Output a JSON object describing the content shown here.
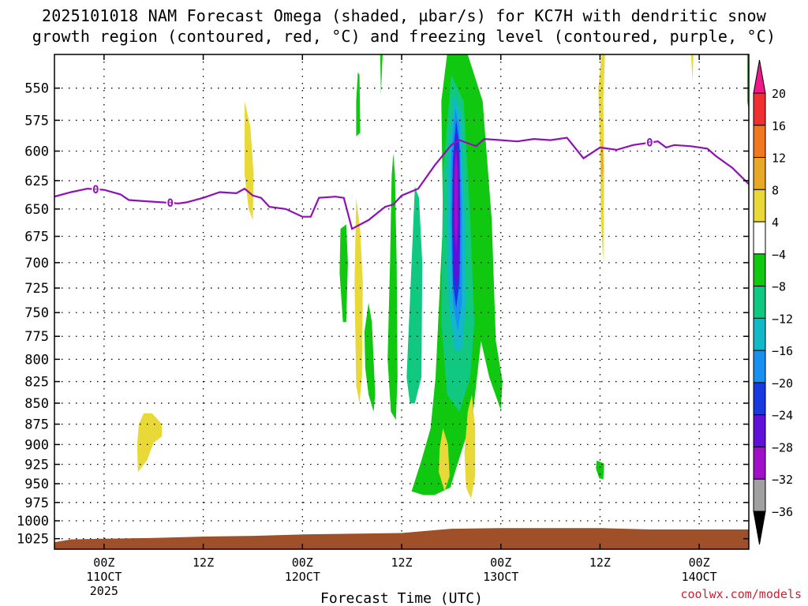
{
  "title": {
    "line1": "2025101018 NAM Forecast Omega (shaded, µbar/s) for KC7H with dendritic snow",
    "line2": "growth region (contoured, red, °C) and freezing level (contoured, purple, °C)"
  },
  "credit": "coolwx.com/models",
  "chart_data": {
    "type": "heatmap",
    "xlabel": "Forecast Time (UTC)",
    "x_ticks": [
      {
        "hours": 0,
        "label1": "00Z",
        "label2": "11OCT",
        "label3": "2025"
      },
      {
        "hours": 12,
        "label1": "12Z",
        "label2": "",
        "label3": ""
      },
      {
        "hours": 24,
        "label1": "00Z",
        "label2": "12OCT",
        "label3": ""
      },
      {
        "hours": 36,
        "label1": "12Z",
        "label2": "",
        "label3": ""
      },
      {
        "hours": 48,
        "label1": "00Z",
        "label2": "13OCT",
        "label3": ""
      },
      {
        "hours": 60,
        "label1": "12Z",
        "label2": "",
        "label3": ""
      },
      {
        "hours": 72,
        "label1": "00Z",
        "label2": "14OCT",
        "label3": ""
      }
    ],
    "x_range_hours": [
      -6,
      78
    ],
    "y_axis": {
      "scale": "log",
      "range": [
        1040,
        525
      ],
      "reversed": true
    },
    "y_ticks": [
      550,
      575,
      600,
      625,
      650,
      675,
      700,
      725,
      750,
      775,
      800,
      825,
      850,
      875,
      900,
      925,
      950,
      975,
      1000,
      1025
    ],
    "grid": "dotted",
    "colorbar": {
      "levels": [
        "20",
        "16",
        "12",
        "8",
        "4",
        "−4",
        "−8",
        "−12",
        "−16",
        "−20",
        "−24",
        "−28",
        "−32",
        "−36"
      ],
      "colors": [
        "#f01888",
        "#f03030",
        "#f07820",
        "#e8a828",
        "#e8d838",
        "#ffffff",
        "#10c810",
        "#10c880",
        "#10b8c8",
        "#1890f0",
        "#1838e0",
        "#6010d8",
        "#a010c8",
        "#a0a0a0",
        "#000000"
      ]
    },
    "freezing_level": {
      "color": "#9010b8",
      "label": "0",
      "label_hours": [
        -1,
        8,
        66
      ],
      "points": [
        [
          -6,
          639
        ],
        [
          -4,
          635
        ],
        [
          -2,
          632
        ],
        [
          0,
          633
        ],
        [
          2,
          637
        ],
        [
          3,
          642
        ],
        [
          5,
          643
        ],
        [
          7,
          644
        ],
        [
          9,
          645
        ],
        [
          10,
          644
        ],
        [
          12,
          640
        ],
        [
          14,
          635
        ],
        [
          16,
          636
        ],
        [
          17,
          632
        ],
        [
          18,
          638
        ],
        [
          19,
          640
        ],
        [
          20,
          648
        ],
        [
          22,
          650
        ],
        [
          24,
          657
        ],
        [
          25,
          657
        ],
        [
          26,
          640
        ],
        [
          28,
          639
        ],
        [
          29,
          640
        ],
        [
          30,
          668
        ],
        [
          32,
          660
        ],
        [
          34,
          648
        ],
        [
          35,
          646
        ],
        [
          36,
          638
        ],
        [
          38,
          632
        ],
        [
          40,
          612
        ],
        [
          42,
          595
        ],
        [
          43,
          591
        ],
        [
          45,
          596
        ],
        [
          46,
          590
        ],
        [
          48,
          591
        ],
        [
          50,
          592
        ],
        [
          52,
          590
        ],
        [
          54,
          591
        ],
        [
          56,
          589
        ],
        [
          58,
          606
        ],
        [
          60,
          597
        ],
        [
          62,
          599
        ],
        [
          64,
          595
        ],
        [
          67,
          592
        ],
        [
          68,
          597
        ],
        [
          69,
          595
        ],
        [
          71,
          596
        ],
        [
          73,
          598
        ],
        [
          74,
          604
        ],
        [
          76,
          614
        ],
        [
          78,
          628
        ]
      ]
    },
    "omega_regions": [
      {
        "level": "-8",
        "color": "#10c810",
        "polygons": [
          [
            [
              37.2,
              960
            ],
            [
              38.4,
              920
            ],
            [
              39.5,
              880
            ],
            [
              40.1,
              820
            ],
            [
              41.0,
              660
            ],
            [
              40.8,
              560
            ],
            [
              41.5,
              525
            ],
            [
              44.0,
              525
            ],
            [
              45.8,
              560
            ],
            [
              46.9,
              660
            ],
            [
              47.4,
              780
            ],
            [
              48.2,
              825
            ],
            [
              48.0,
              858
            ],
            [
              46.6,
              820
            ],
            [
              45.6,
              780
            ],
            [
              45.0,
              830
            ],
            [
              44.6,
              865
            ],
            [
              43.5,
              900
            ],
            [
              42.6,
              930
            ],
            [
              41.9,
              955
            ],
            [
              40.0,
              965
            ],
            [
              38.6,
              965
            ]
          ],
          [
            [
              34.8,
              620
            ],
            [
              35.0,
              602
            ],
            [
              35.2,
              620
            ],
            [
              35.4,
              700
            ],
            [
              35.5,
              820
            ],
            [
              35.3,
              870
            ],
            [
              34.7,
              860
            ],
            [
              34.3,
              800
            ],
            [
              34.6,
              700
            ]
          ],
          [
            [
              31.5,
              770
            ],
            [
              32.0,
              740
            ],
            [
              32.4,
              760
            ],
            [
              32.8,
              840
            ],
            [
              32.6,
              860
            ],
            [
              32.0,
              840
            ],
            [
              31.6,
              810
            ]
          ],
          [
            [
              28.6,
              668
            ],
            [
              29.3,
              664
            ],
            [
              29.5,
              700
            ],
            [
              29.3,
              760
            ],
            [
              28.9,
              760
            ],
            [
              28.5,
              710
            ]
          ],
          [
            [
              30.7,
              538
            ],
            [
              30.9,
              540
            ],
            [
              31.0,
              585
            ],
            [
              30.5,
              588
            ],
            [
              30.5,
              560
            ]
          ],
          [
            [
              33.4,
              525
            ],
            [
              33.7,
              525
            ],
            [
              33.5,
              555
            ]
          ],
          [
            [
              59.6,
              920
            ],
            [
              60.5,
              924
            ],
            [
              60.4,
              944
            ],
            [
              59.9,
              943
            ],
            [
              59.5,
              930
            ]
          ],
          [
            [
              77.8,
              525
            ],
            [
              78.2,
              525
            ],
            [
              78.2,
              575
            ],
            [
              77.8,
              560
            ]
          ]
        ]
      },
      {
        "level": "-12",
        "color": "#10c880",
        "polygons": [
          [
            [
              36.6,
              820
            ],
            [
              37.2,
              700
            ],
            [
              37.6,
              630
            ],
            [
              38.1,
              640
            ],
            [
              38.5,
              700
            ],
            [
              38.4,
              820
            ],
            [
              37.6,
              850
            ],
            [
              37.0,
              850
            ]
          ],
          [
            [
              41.0,
              620
            ],
            [
              42.0,
              540
            ],
            [
              43.5,
              560
            ],
            [
              44.3,
              660
            ],
            [
              44.8,
              760
            ],
            [
              44.3,
              820
            ],
            [
              43.0,
              860
            ],
            [
              41.5,
              840
            ],
            [
              40.8,
              760
            ]
          ]
        ]
      },
      {
        "level": "-16",
        "color": "#10b8c8",
        "polygons": [
          [
            [
              41.7,
              600
            ],
            [
              42.3,
              555
            ],
            [
              43.2,
              570
            ],
            [
              43.6,
              650
            ],
            [
              43.8,
              740
            ],
            [
              43.3,
              790
            ],
            [
              42.4,
              790
            ],
            [
              41.7,
              740
            ],
            [
              41.5,
              660
            ]
          ]
        ]
      },
      {
        "level": "-20",
        "color": "#1890f0",
        "polygons": [
          [
            [
              42.0,
              600
            ],
            [
              42.5,
              565
            ],
            [
              43.0,
              580
            ],
            [
              43.3,
              650
            ],
            [
              43.3,
              740
            ],
            [
              42.8,
              770
            ],
            [
              42.2,
              740
            ],
            [
              41.9,
              660
            ]
          ]
        ]
      },
      {
        "level": "-24",
        "color": "#1838e0",
        "polygons": [
          [
            [
              42.2,
              605
            ],
            [
              42.6,
              575
            ],
            [
              43.0,
              595
            ],
            [
              43.1,
              660
            ],
            [
              43.0,
              720
            ],
            [
              42.6,
              745
            ],
            [
              42.2,
              720
            ],
            [
              42.1,
              660
            ]
          ]
        ]
      },
      {
        "level": "-28",
        "color": "#6010d8",
        "polygons": [
          [
            [
              42.3,
              610
            ],
            [
              42.6,
              585
            ],
            [
              42.9,
              605
            ],
            [
              43.0,
              660
            ],
            [
              42.9,
              710
            ],
            [
              42.6,
              725
            ],
            [
              42.3,
              705
            ],
            [
              42.2,
              660
            ]
          ]
        ]
      },
      {
        "level": "-32",
        "color": "#a010c8",
        "polygons": [
          [
            [
              42.4,
              615
            ],
            [
              42.6,
              598
            ],
            [
              42.8,
              615
            ],
            [
              42.8,
              665
            ],
            [
              42.6,
              690
            ],
            [
              42.4,
              668
            ]
          ]
        ]
      },
      {
        "level": "4",
        "color": "#e8d838",
        "polygons": [
          [
            [
              17.0,
              560
            ],
            [
              17.7,
              580
            ],
            [
              18.1,
              620
            ],
            [
              18.0,
              660
            ],
            [
              17.5,
              650
            ],
            [
              17.0,
              620
            ]
          ],
          [
            [
              60.2,
              525
            ],
            [
              60.6,
              525
            ],
            [
              60.4,
              560
            ],
            [
              60.5,
              620
            ],
            [
              60.4,
              700
            ],
            [
              60.1,
              660
            ],
            [
              60.0,
              600
            ],
            [
              59.8,
              550
            ]
          ],
          [
            [
              30.5,
              640
            ],
            [
              31.0,
              670
            ],
            [
              31.3,
              720
            ],
            [
              31.2,
              820
            ],
            [
              30.9,
              850
            ],
            [
              30.5,
              830
            ],
            [
              30.3,
              720
            ]
          ],
          [
            [
              4.2,
              875
            ],
            [
              4.8,
              862
            ],
            [
              5.8,
              862
            ],
            [
              7.0,
              875
            ],
            [
              7.0,
              890
            ],
            [
              6.0,
              898
            ],
            [
              5.2,
              920
            ],
            [
              4.1,
              935
            ],
            [
              4.0,
              900
            ]
          ],
          [
            [
              40.6,
              905
            ],
            [
              41.0,
              880
            ],
            [
              41.6,
              900
            ],
            [
              41.8,
              940
            ],
            [
              41.2,
              960
            ],
            [
              40.5,
              935
            ]
          ],
          [
            [
              44.0,
              860
            ],
            [
              44.5,
              840
            ],
            [
              44.9,
              880
            ],
            [
              44.9,
              940
            ],
            [
              44.4,
              970
            ],
            [
              43.8,
              955
            ],
            [
              43.6,
              910
            ]
          ],
          [
            [
              71.0,
              525
            ],
            [
              71.3,
              525
            ],
            [
              71.2,
              545
            ]
          ]
        ]
      },
      {
        "level": "8",
        "color": "#e8a828",
        "polygons": [
          [
            [
              60.1,
              600
            ],
            [
              60.3,
              590
            ],
            [
              60.4,
              615
            ],
            [
              60.2,
              625
            ]
          ]
        ]
      }
    ],
    "terrain": {
      "color": "#a05028",
      "points": [
        [
          -6,
          1030
        ],
        [
          -4,
          1026
        ],
        [
          0,
          1025
        ],
        [
          6,
          1024
        ],
        [
          12,
          1022
        ],
        [
          18,
          1021
        ],
        [
          24,
          1019
        ],
        [
          30,
          1018
        ],
        [
          36,
          1017
        ],
        [
          40,
          1013
        ],
        [
          42,
          1011
        ],
        [
          48,
          1010
        ],
        [
          54,
          1010
        ],
        [
          60,
          1010
        ],
        [
          66,
          1012
        ],
        [
          72,
          1012
        ],
        [
          78,
          1012
        ]
      ]
    }
  }
}
